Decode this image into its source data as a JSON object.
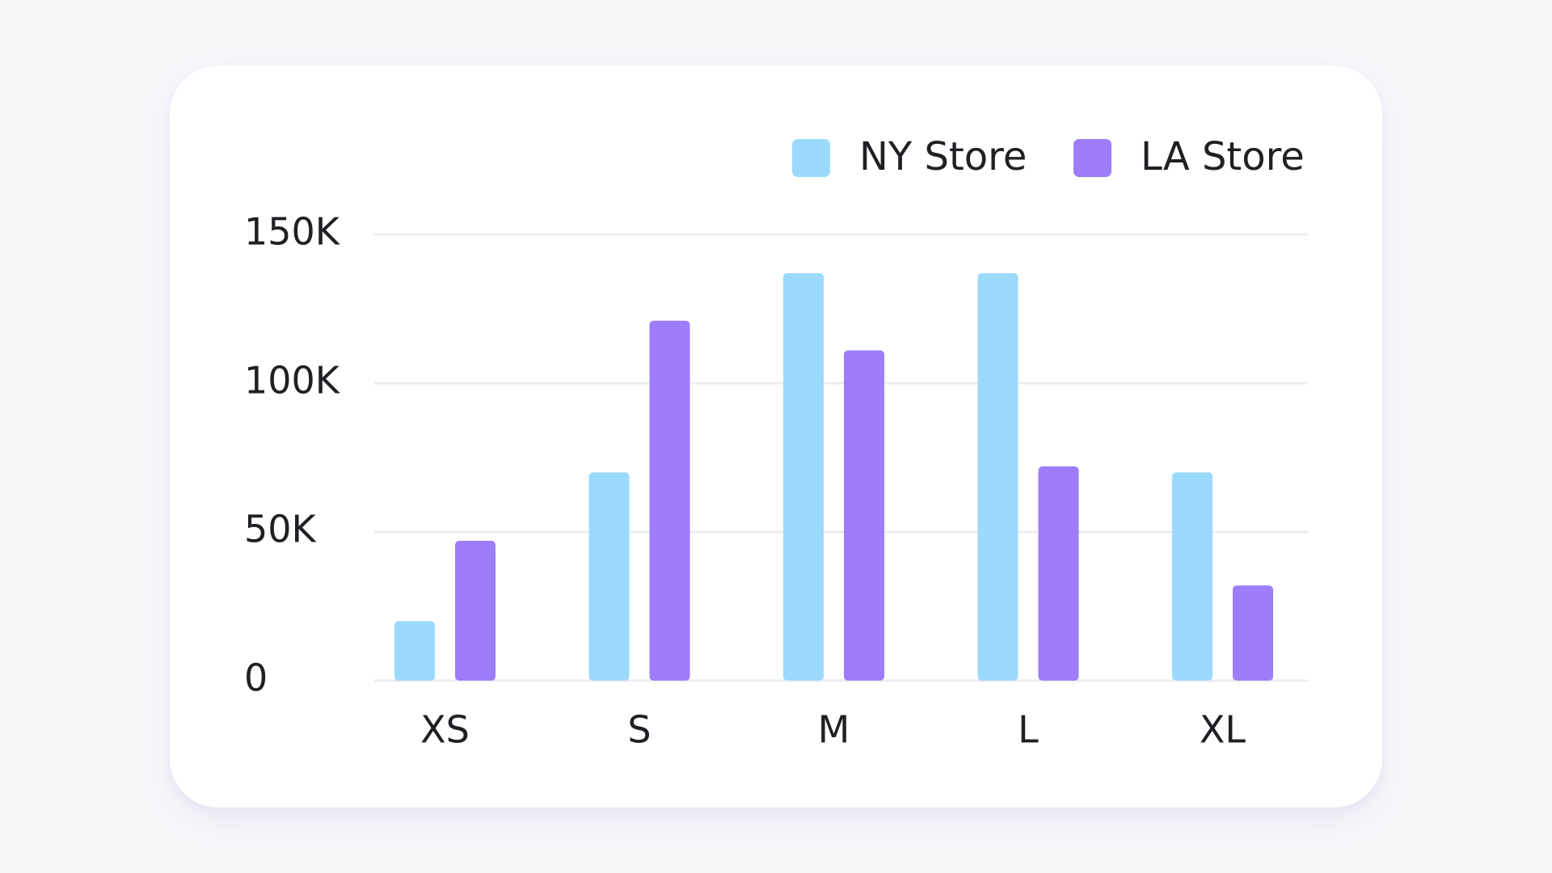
{
  "chart_data": {
    "type": "bar",
    "title": "",
    "xlabel": "",
    "ylabel": "",
    "categories": [
      "XS",
      "S",
      "M",
      "L",
      "XL"
    ],
    "series": [
      {
        "name": "NY Store",
        "color": "#9bdafc",
        "values": [
          20000,
          70000,
          137000,
          137000,
          70000
        ]
      },
      {
        "name": "LA Store",
        "color": "#9d7df9",
        "values": [
          47000,
          121000,
          111000,
          72000,
          32000
        ]
      }
    ],
    "yticks": [
      0,
      50000,
      100000,
      150000
    ],
    "ytick_labels": [
      "0",
      "50K",
      "100K",
      "150K"
    ],
    "ylim": [
      0,
      150000
    ],
    "grid": true,
    "legend_position": "top-right"
  }
}
